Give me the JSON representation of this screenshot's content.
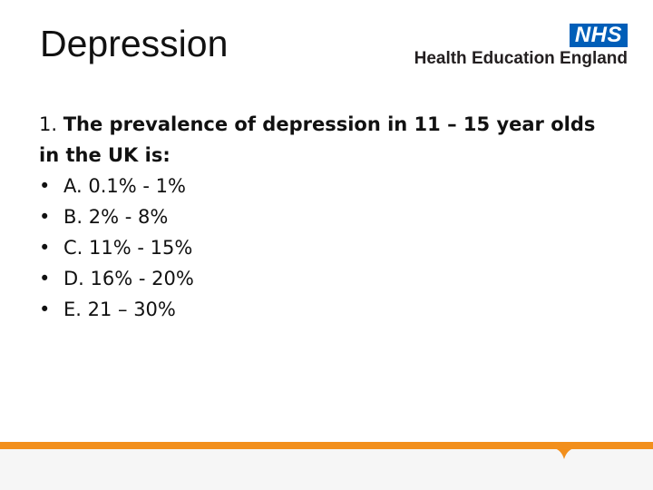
{
  "slide": {
    "title": "Depression"
  },
  "logo": {
    "badge": "NHS",
    "org": "Health Education England"
  },
  "question": {
    "number": "1. ",
    "text": "The prevalence of depression in 11 – 15 year olds in the UK is:"
  },
  "options": [
    {
      "bullet": "•",
      "label": "A. 0.1% - 1%"
    },
    {
      "bullet": "•",
      "label": "B. 2% - 8%"
    },
    {
      "bullet": "•",
      "label": "C. 11% - 15%"
    },
    {
      "bullet": "•",
      "label": "D. 16% - 20%"
    },
    {
      "bullet": "•",
      "label": "E. 21 – 30%"
    }
  ],
  "colors": {
    "accent": "#f28f1c",
    "nhs_blue": "#005eb8"
  }
}
